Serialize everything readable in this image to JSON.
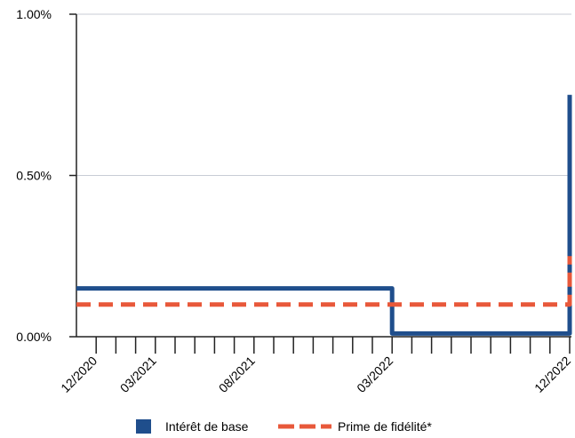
{
  "chart_data": {
    "type": "line",
    "title": "",
    "xlabel": "",
    "ylabel": "",
    "x_range": [
      "2020-11",
      "2022-12"
    ],
    "ylim": [
      0,
      1.0
    ],
    "y_unit": "%",
    "y_ticks": [
      {
        "value": 0.0,
        "label": "0.00%"
      },
      {
        "value": 0.5,
        "label": "0.50%"
      },
      {
        "value": 1.0,
        "label": "1.00%"
      }
    ],
    "x_tick_labels": [
      {
        "date": "2020-12",
        "label": "12/2020"
      },
      {
        "date": "2021-03",
        "label": "03/2021"
      },
      {
        "date": "2021-08",
        "label": "08/2021"
      },
      {
        "date": "2022-03",
        "label": "03/2022"
      },
      {
        "date": "2022-12",
        "label": "12/2022"
      }
    ],
    "x_minor_ticks": [
      "2020-12",
      "2021-01",
      "2021-02",
      "2021-03",
      "2021-04",
      "2021-05",
      "2021-06",
      "2021-07",
      "2021-08",
      "2021-09",
      "2021-10",
      "2021-11",
      "2021-12",
      "2022-01",
      "2022-02",
      "2022-03",
      "2022-04",
      "2022-05",
      "2022-06",
      "2022-07",
      "2022-08",
      "2022-09",
      "2022-10",
      "2022-11",
      "2022-12"
    ],
    "grid": true,
    "legend_position": "bottom",
    "series": [
      {
        "name": "Intérêt de base",
        "color": "#1f4e8c",
        "style": "solid",
        "step": true,
        "points": [
          {
            "x": "2020-11",
            "y": 0.15
          },
          {
            "x": "2022-03",
            "y": 0.15
          },
          {
            "x": "2022-03",
            "y": 0.01
          },
          {
            "x": "2022-12",
            "y": 0.01
          },
          {
            "x": "2022-12",
            "y": 0.75
          }
        ]
      },
      {
        "name": "Prime de fidélité*",
        "color": "#e8583a",
        "style": "dashed",
        "step": true,
        "points": [
          {
            "x": "2020-11",
            "y": 0.1
          },
          {
            "x": "2022-12",
            "y": 0.1
          },
          {
            "x": "2022-12",
            "y": 0.25
          }
        ]
      }
    ]
  }
}
